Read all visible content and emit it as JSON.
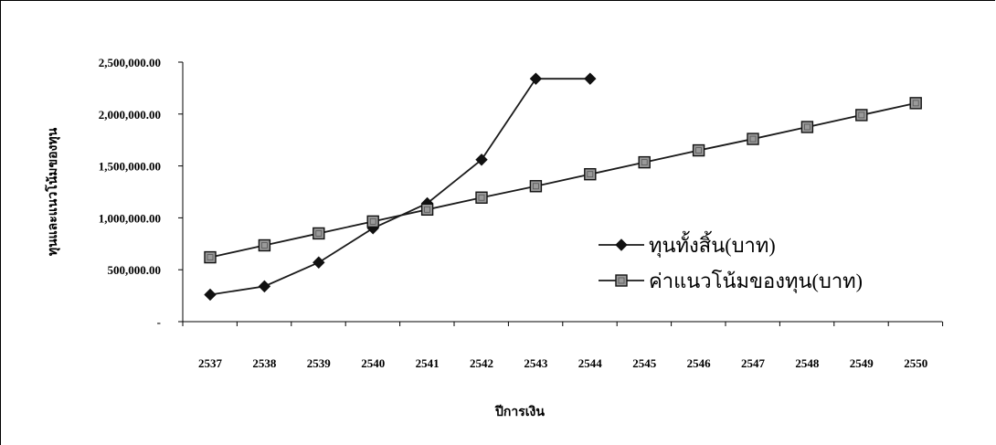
{
  "chart_data": {
    "type": "line",
    "title": "",
    "xlabel": "ปีการเงิน",
    "ylabel": "ทุนและแนวโน้มของทุน",
    "categories": [
      "2537",
      "2538",
      "2539",
      "2540",
      "2541",
      "2542",
      "2543",
      "2544",
      "2545",
      "2546",
      "2547",
      "2548",
      "2549",
      "2550"
    ],
    "ylim": [
      0,
      2500000
    ],
    "yticks": [
      {
        "value": 0,
        "label": "-"
      },
      {
        "value": 500000,
        "label": "500,000.00"
      },
      {
        "value": 1000000,
        "label": "1,000,000.00"
      },
      {
        "value": 1500000,
        "label": "1,500,000.00"
      },
      {
        "value": 2000000,
        "label": "2,000,000.00"
      },
      {
        "value": 2500000,
        "label": "2,500,000.00"
      }
    ],
    "grid": false,
    "legend_position": "right",
    "series": [
      {
        "name": "ทุนทั้งสิ้น(บาท)",
        "marker": "diamond",
        "color": "#1a1a1a",
        "values": [
          260000,
          340000,
          570000,
          900000,
          1140000,
          1560000,
          2340000,
          2340000,
          null,
          null,
          null,
          null,
          null,
          null
        ]
      },
      {
        "name": "ค่าแนวโน้มของทุน(บาท)",
        "marker": "square",
        "color": "#1a1a1a",
        "marker_fill": "#9a9a9a",
        "values": [
          620000,
          735000,
          850000,
          965000,
          1080000,
          1195000,
          1305000,
          1420000,
          1535000,
          1650000,
          1760000,
          1875000,
          1990000,
          2105000
        ]
      }
    ]
  }
}
